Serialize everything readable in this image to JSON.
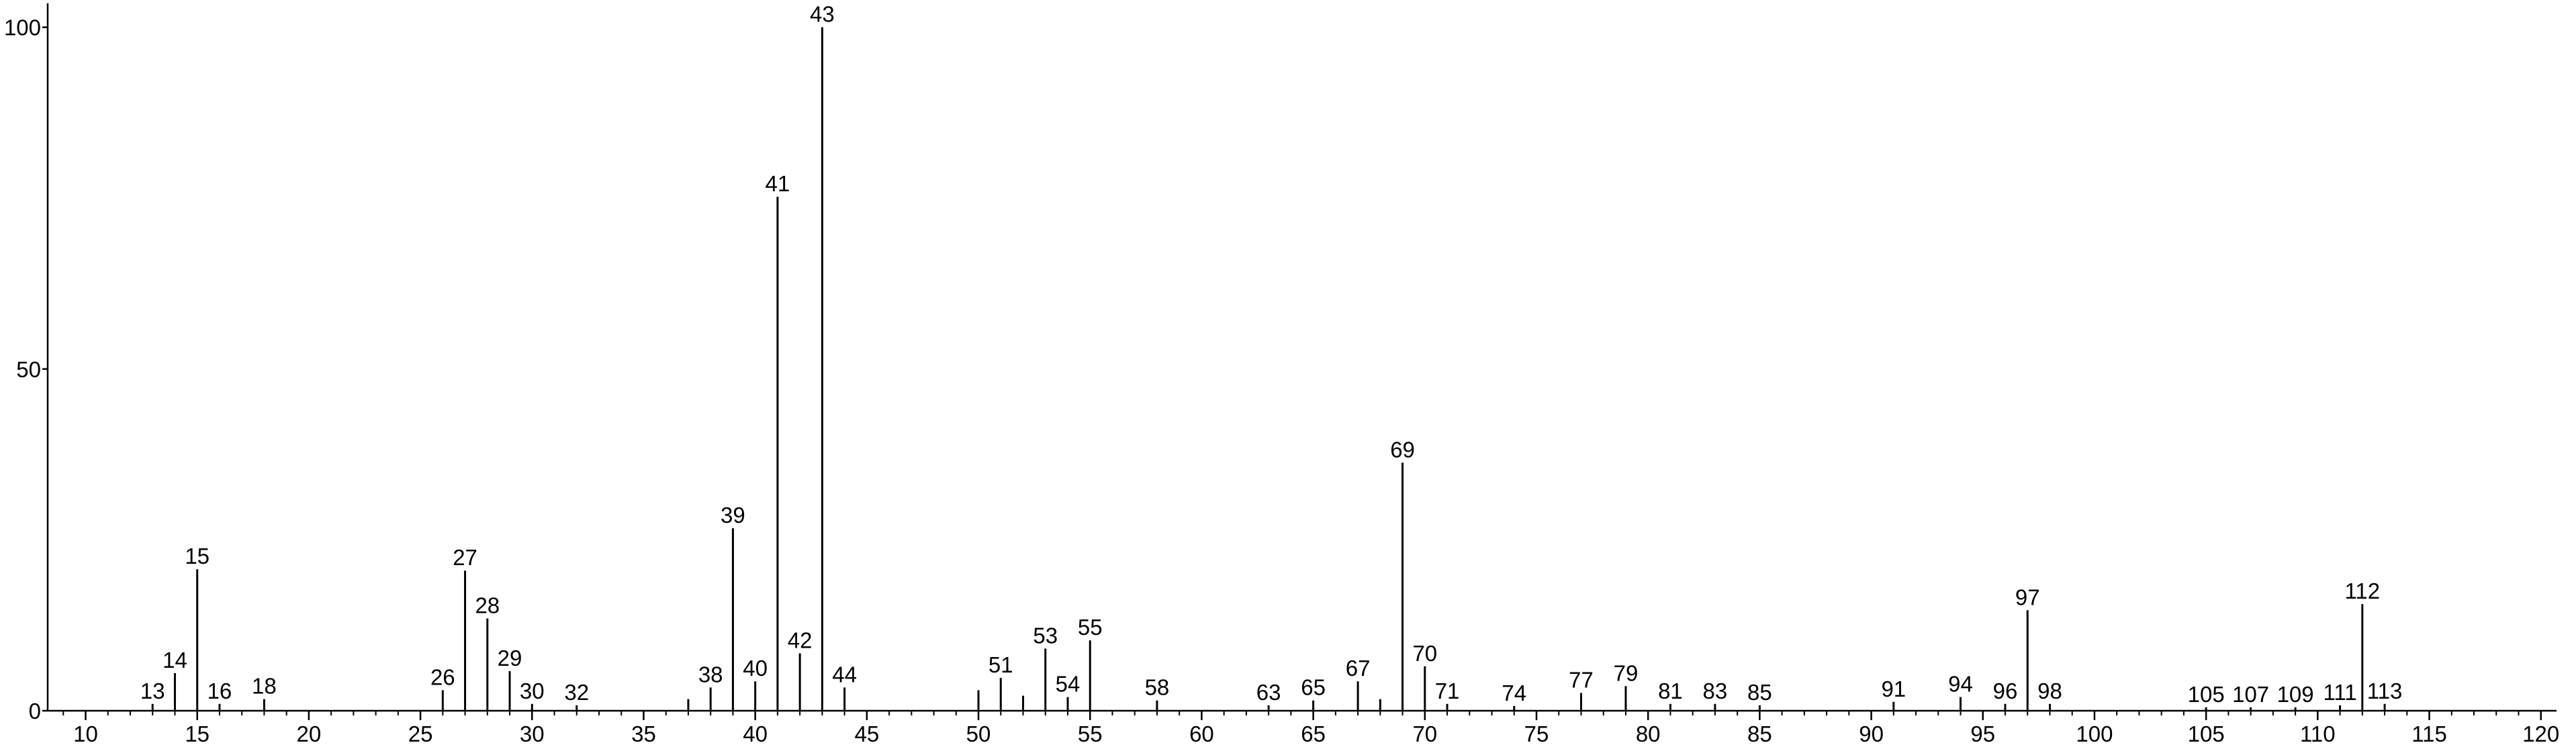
{
  "chart_data": {
    "type": "stick",
    "x": [
      13,
      14,
      15,
      16,
      18,
      26,
      27,
      28,
      29,
      30,
      32,
      37,
      38,
      39,
      40,
      41,
      42,
      43,
      44,
      50,
      51,
      52,
      53,
      54,
      55,
      58,
      63,
      65,
      67,
      68,
      69,
      70,
      71,
      74,
      77,
      79,
      81,
      83,
      85,
      91,
      94,
      96,
      97,
      98,
      105,
      107,
      109,
      111,
      112,
      113
    ],
    "values": [
      1,
      5.5,
      20.7,
      1,
      1.7,
      3,
      20.5,
      13.5,
      5.8,
      1,
      0.8,
      1.7,
      3.4,
      26.7,
      4.3,
      75.2,
      8.4,
      100,
      3.4,
      3,
      4.8,
      2.2,
      9.1,
      2,
      10.3,
      1.5,
      0.8,
      1.5,
      4.3,
      1.7,
      36.3,
      6.5,
      1,
      0.7,
      2.6,
      3.6,
      1,
      1,
      0.8,
      1.3,
      2,
      1,
      14.7,
      1,
      0.5,
      0.5,
      0.5,
      0.8,
      15.6,
      1
    ],
    "labels": [
      "13",
      "14",
      "15",
      "16",
      "18",
      "26",
      "27",
      "28",
      "29",
      "30",
      "32",
      null,
      "38",
      "39",
      "40",
      "41",
      "42",
      "43",
      "44",
      null,
      "51",
      null,
      "53",
      "54",
      "55",
      "58",
      "63",
      "65",
      "67",
      null,
      "69",
      "70",
      "71",
      "74",
      "77",
      "79",
      "81",
      "83",
      "85",
      "91",
      "94",
      "96",
      "97",
      "98",
      "105",
      "107",
      "109",
      "111",
      "112",
      "113"
    ],
    "color": "#000000",
    "xlim": [
      8.3,
      120.7
    ],
    "ylim": [
      0,
      103.5
    ],
    "xticks": [
      10,
      15,
      20,
      25,
      30,
      35,
      40,
      45,
      50,
      55,
      60,
      65,
      70,
      75,
      80,
      85,
      90,
      95,
      100,
      105,
      110,
      115,
      120
    ],
    "xminorticks": [
      9,
      11,
      12,
      13,
      14,
      16,
      17,
      18,
      19,
      21,
      22,
      23,
      24,
      26,
      27,
      28,
      29,
      31,
      32,
      33,
      34,
      36,
      37,
      38,
      39,
      41,
      42,
      43,
      44,
      46,
      47,
      48,
      49,
      51,
      52,
      53,
      54,
      56,
      57,
      58,
      59,
      61,
      62,
      63,
      64,
      66,
      67,
      68,
      69,
      71,
      72,
      73,
      74,
      76,
      77,
      78,
      79,
      81,
      82,
      83,
      84,
      86,
      87,
      88,
      89,
      91,
      92,
      93,
      94,
      96,
      97,
      98,
      99,
      101,
      102,
      103,
      104,
      106,
      107,
      108,
      109,
      111,
      112,
      113,
      114,
      116,
      117,
      118,
      119
    ],
    "yticks": [
      0,
      50,
      100
    ]
  }
}
